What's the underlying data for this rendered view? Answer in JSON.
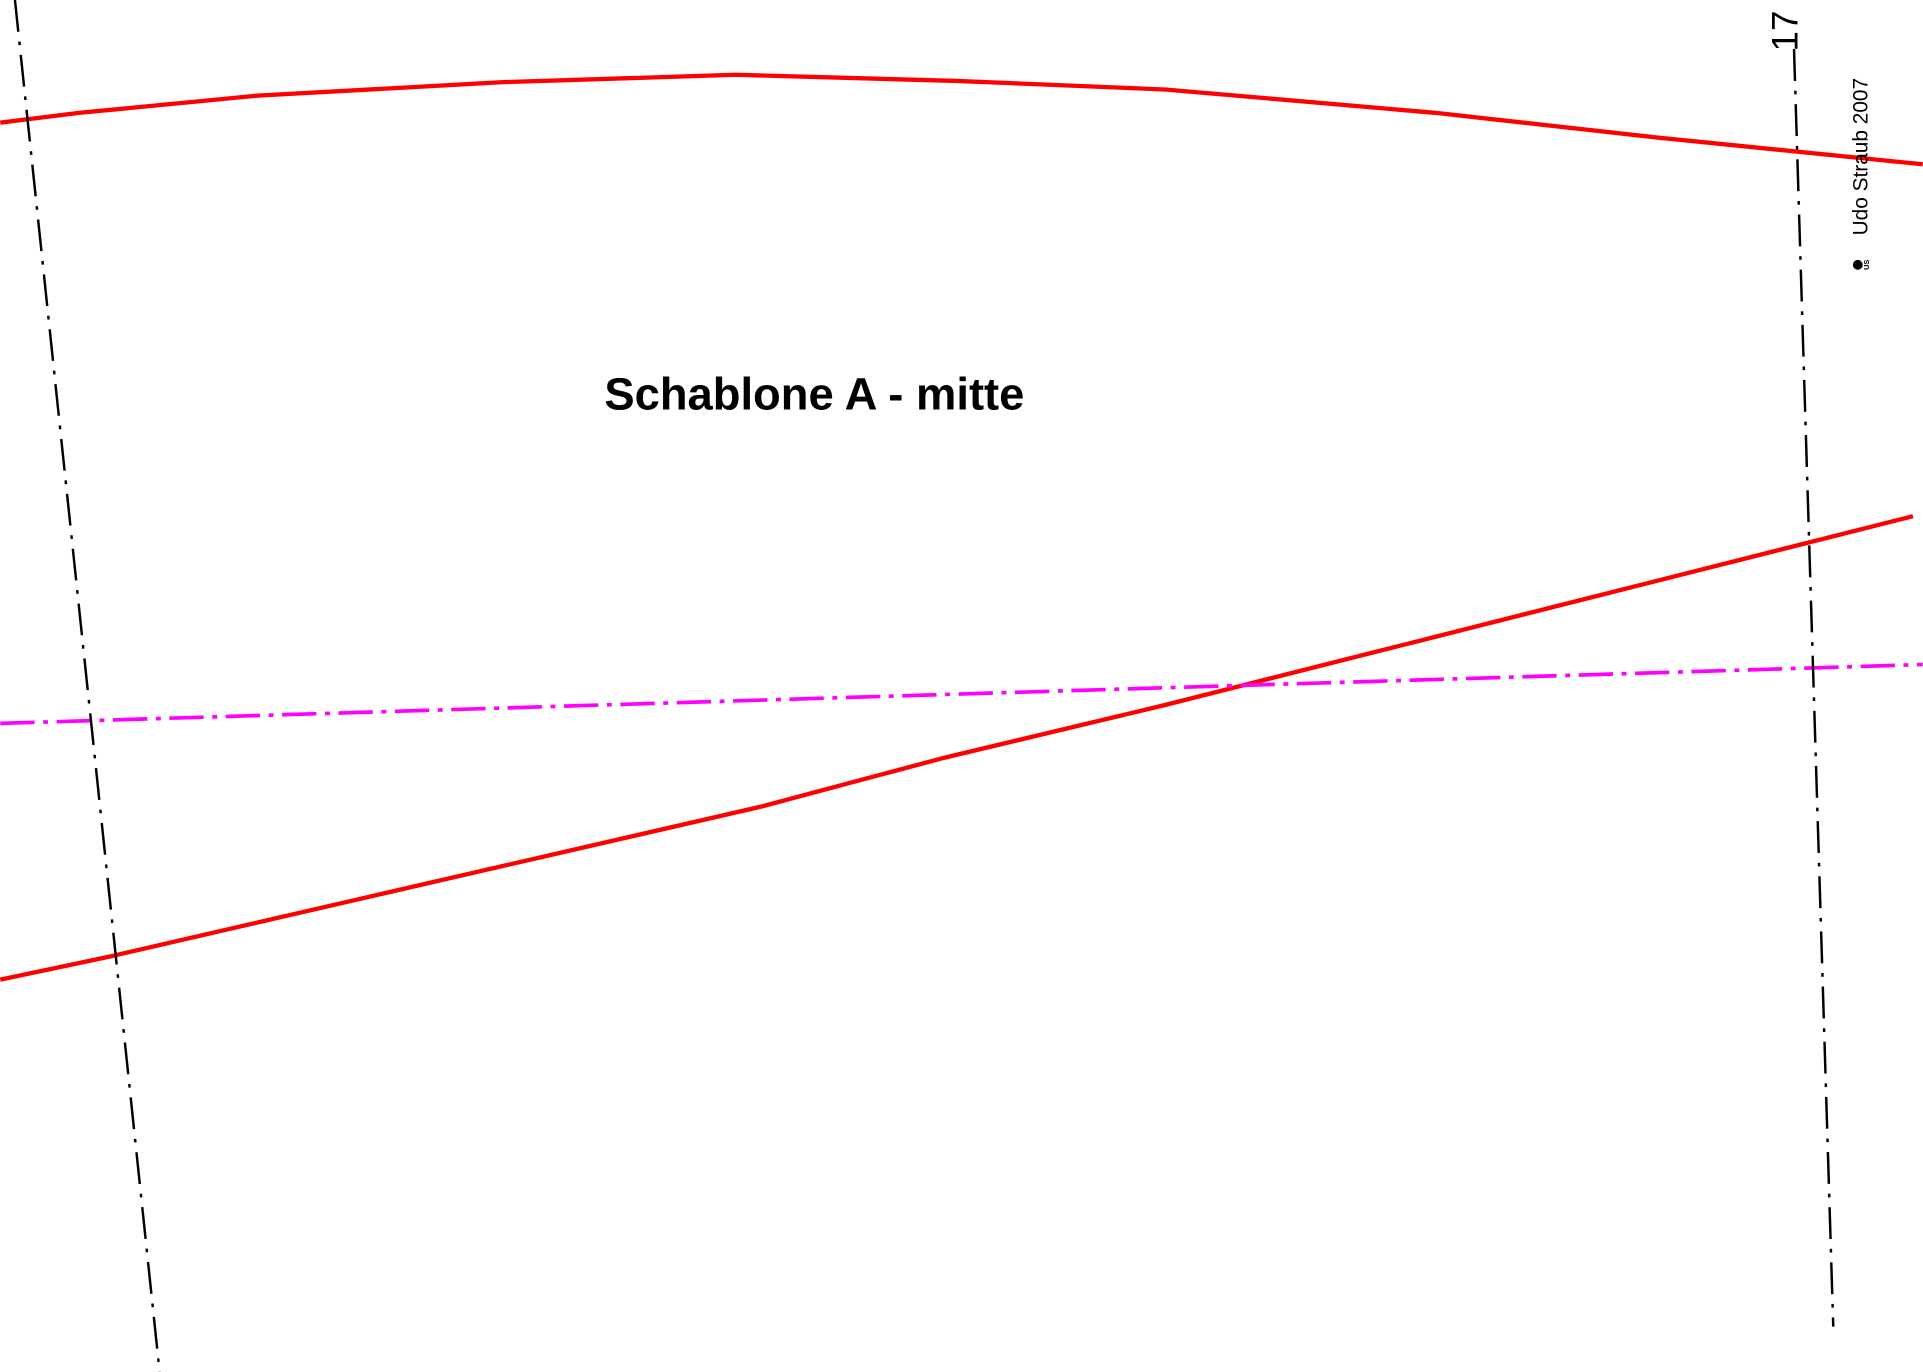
{
  "title": "Schablone A - mitte",
  "page_number": "17",
  "copyright": "Udo Straub 2007",
  "logo": "US"
}
